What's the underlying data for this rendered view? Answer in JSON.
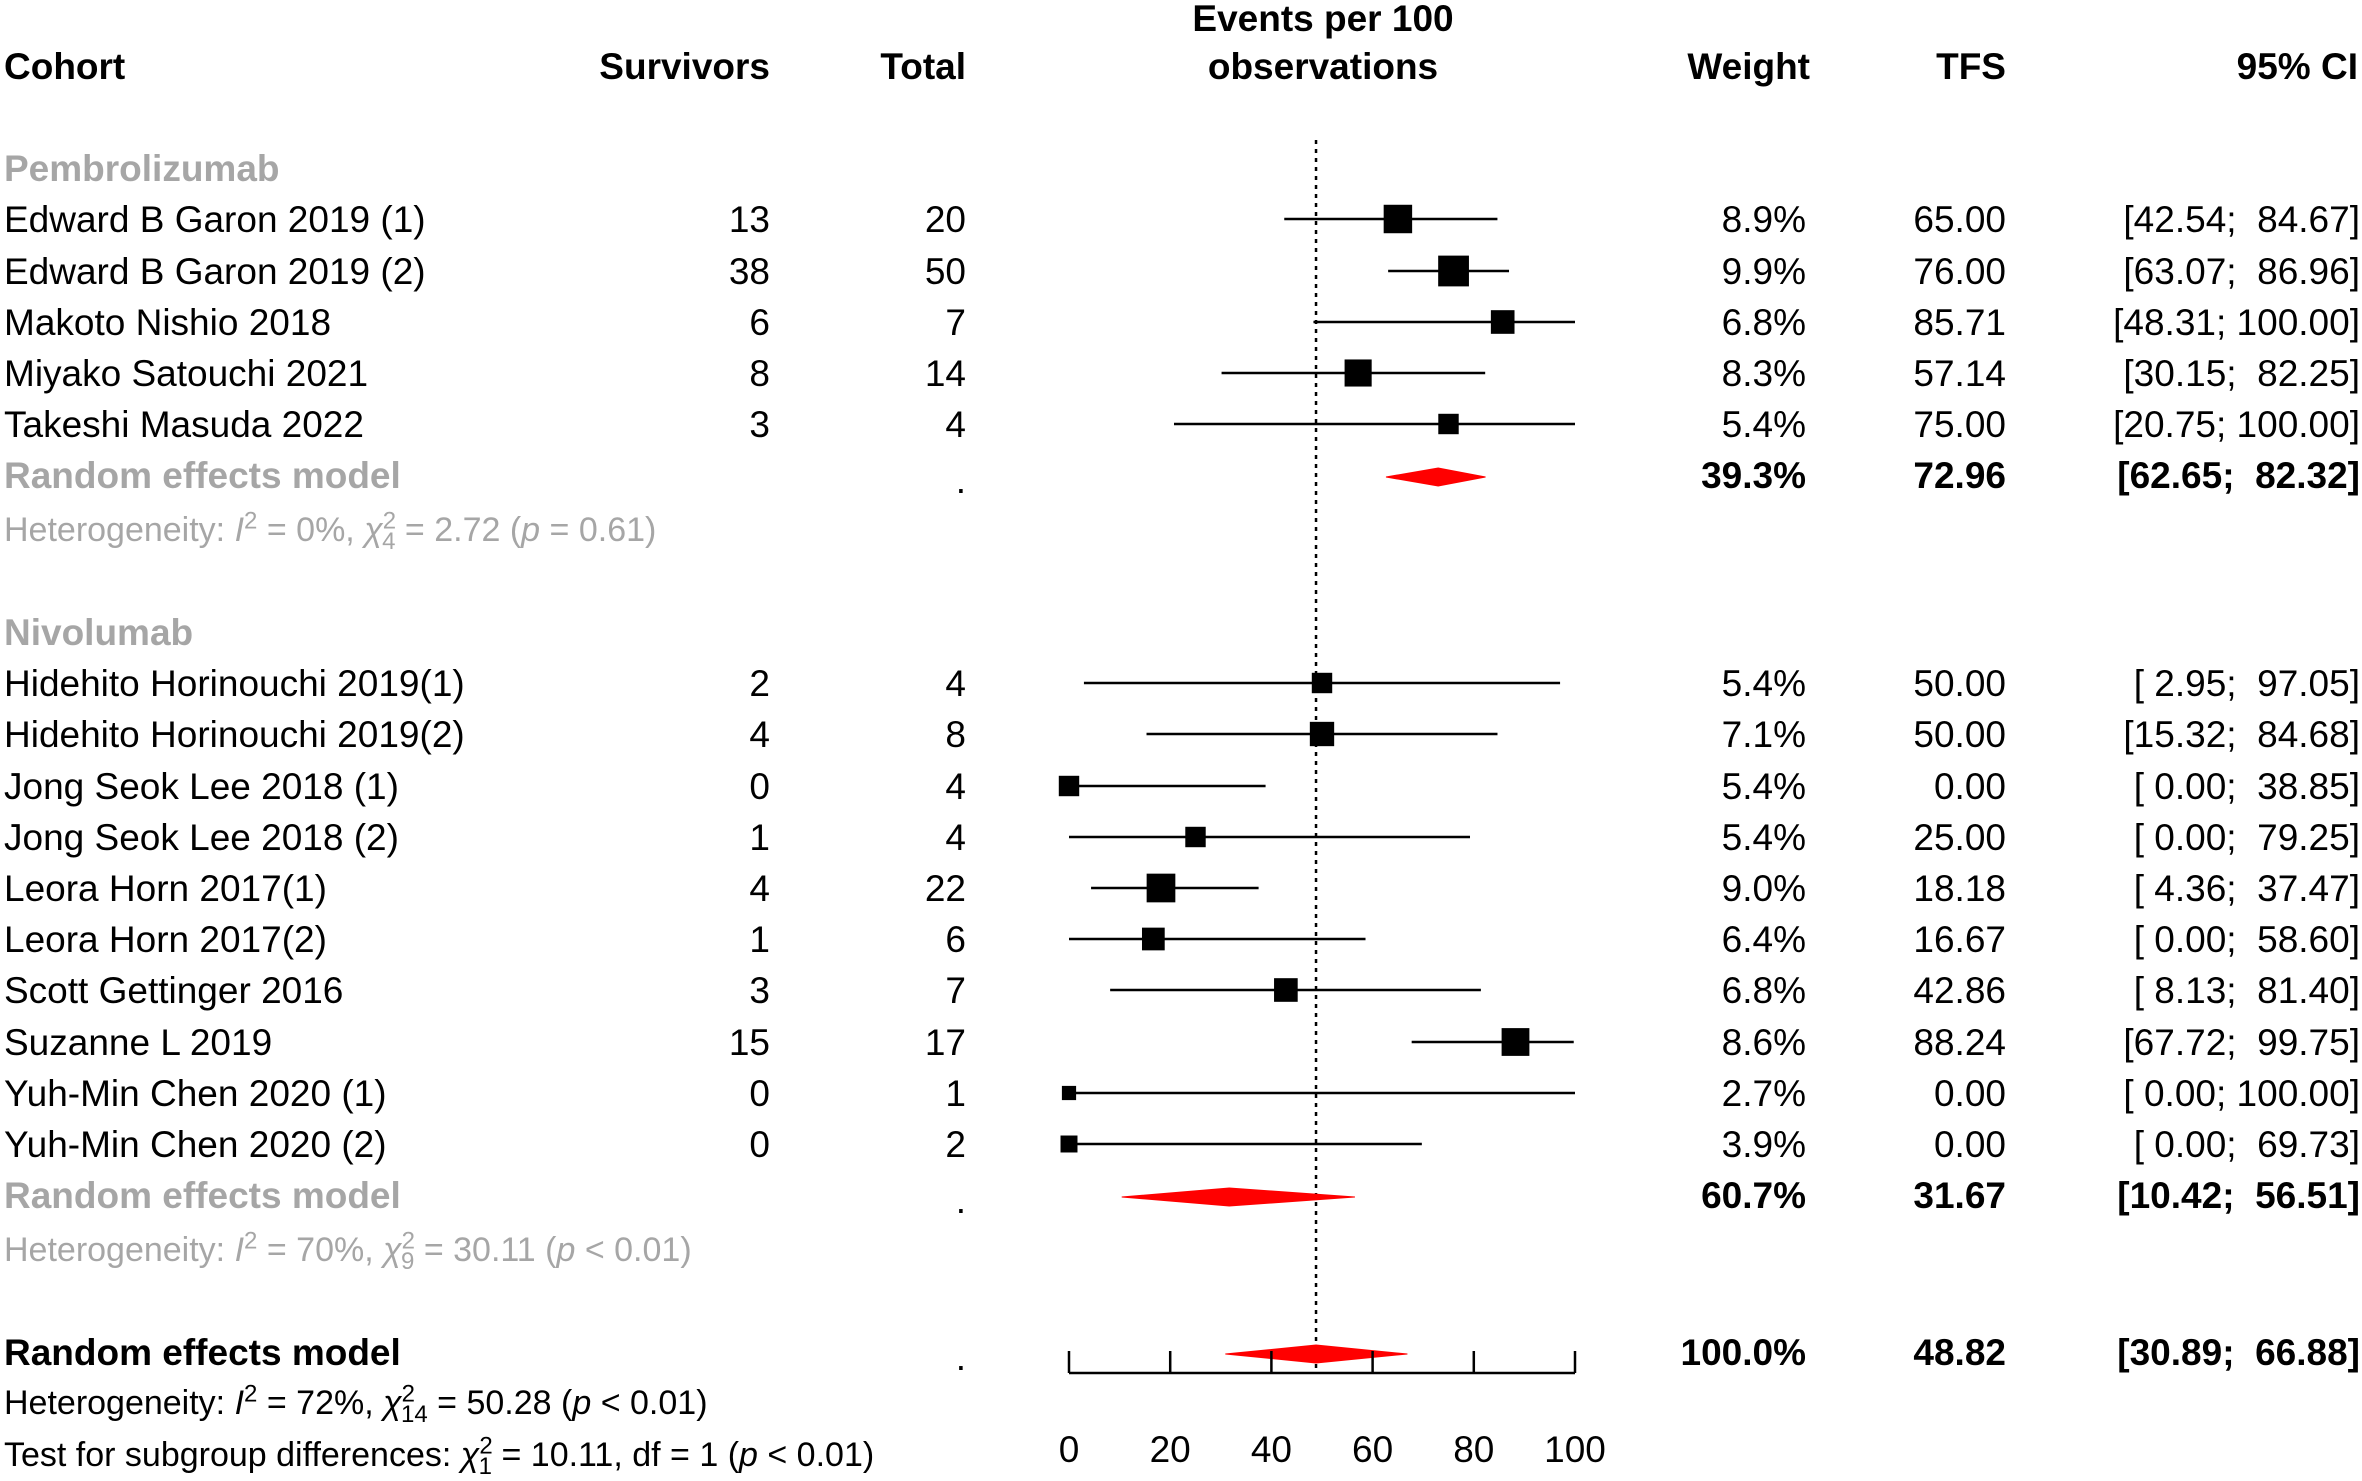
{
  "header": {
    "cohort": "Cohort",
    "survivors": "Survivors",
    "total": "Total",
    "events_line1": "Events per 100",
    "events_line2": "observations",
    "weight": "Weight",
    "tfs": "TFS",
    "ci": "95% CI"
  },
  "groups": [
    {
      "name": "Pembrolizumab",
      "studies": [
        {
          "cohort": "Edward B Garon 2019 (1)",
          "survivors": "13",
          "total": "20",
          "weight": "8.9%",
          "tfs": "65.00",
          "ci": "[42.54;  84.67]"
        },
        {
          "cohort": "Edward B Garon 2019 (2)",
          "survivors": "38",
          "total": "50",
          "weight": "9.9%",
          "tfs": "76.00",
          "ci": "[63.07;  86.96]"
        },
        {
          "cohort": "Makoto Nishio 2018",
          "survivors": "6",
          "total": "7",
          "weight": "6.8%",
          "tfs": "85.71",
          "ci": "[48.31; 100.00]"
        },
        {
          "cohort": "Miyako Satouchi 2021",
          "survivors": "8",
          "total": "14",
          "weight": "8.3%",
          "tfs": "57.14",
          "ci": "[30.15;  82.25]"
        },
        {
          "cohort": "Takeshi Masuda 2022",
          "survivors": "3",
          "total": "4",
          "weight": "5.4%",
          "tfs": "75.00",
          "ci": "[20.75; 100.00]"
        }
      ],
      "model": {
        "label": "Random effects model",
        "total": ".",
        "weight": "39.3%",
        "tfs": "72.96",
        "ci": "[62.65;  82.32]"
      },
      "het": {
        "prefix": "Heterogeneity: ",
        "i2_sym": "I",
        "i2_sup": "2",
        "i2_val": " = 0%, ",
        "chi_sym": "χ",
        "chi_sup": "2",
        "chi_sub": "4",
        "chi_val": " = 2.72 (",
        "p_sym": "p",
        "p_val": " = 0.61)"
      }
    },
    {
      "name": "Nivolumab",
      "studies": [
        {
          "cohort": "Hidehito Horinouchi 2019(1)",
          "survivors": "2",
          "total": "4",
          "weight": "5.4%",
          "tfs": "50.00",
          "ci": "[ 2.95;  97.05]"
        },
        {
          "cohort": "Hidehito Horinouchi 2019(2)",
          "survivors": "4",
          "total": "8",
          "weight": "7.1%",
          "tfs": "50.00",
          "ci": "[15.32;  84.68]"
        },
        {
          "cohort": "Jong Seok Lee 2018 (1)",
          "survivors": "0",
          "total": "4",
          "weight": "5.4%",
          "tfs": "0.00",
          "ci": "[ 0.00;  38.85]"
        },
        {
          "cohort": "Jong Seok Lee 2018 (2)",
          "survivors": "1",
          "total": "4",
          "weight": "5.4%",
          "tfs": "25.00",
          "ci": "[ 0.00;  79.25]"
        },
        {
          "cohort": "Leora Horn 2017(1)",
          "survivors": "4",
          "total": "22",
          "weight": "9.0%",
          "tfs": "18.18",
          "ci": "[ 4.36;  37.47]"
        },
        {
          "cohort": "Leora Horn 2017(2)",
          "survivors": "1",
          "total": "6",
          "weight": "6.4%",
          "tfs": "16.67",
          "ci": "[ 0.00;  58.60]"
        },
        {
          "cohort": "Scott Gettinger 2016",
          "survivors": "3",
          "total": "7",
          "weight": "6.8%",
          "tfs": "42.86",
          "ci": "[ 8.13;  81.40]"
        },
        {
          "cohort": "Suzanne L 2019",
          "survivors": "15",
          "total": "17",
          "weight": "8.6%",
          "tfs": "88.24",
          "ci": "[67.72;  99.75]"
        },
        {
          "cohort": "Yuh-Min Chen 2020 (1)",
          "survivors": "0",
          "total": "1",
          "weight": "2.7%",
          "tfs": "0.00",
          "ci": "[ 0.00; 100.00]"
        },
        {
          "cohort": "Yuh-Min Chen 2020 (2)",
          "survivors": "0",
          "total": "2",
          "weight": "3.9%",
          "tfs": "0.00",
          "ci": "[ 0.00;  69.73]"
        }
      ],
      "model": {
        "label": "Random effects model",
        "total": ".",
        "weight": "60.7%",
        "tfs": "31.67",
        "ci": "[10.42;  56.51]"
      },
      "het": {
        "prefix": "Heterogeneity: ",
        "i2_sym": "I",
        "i2_sup": "2",
        "i2_val": " = 70%, ",
        "chi_sym": "χ",
        "chi_sup": "2",
        "chi_sub": "9",
        "chi_val": " = 30.11 (",
        "p_sym": "p",
        "p_val": " < 0.01)"
      }
    }
  ],
  "overall": {
    "model": {
      "label": "Random effects model",
      "total": ".",
      "weight": "100.0%",
      "tfs": "48.82",
      "ci": "[30.89;  66.88]"
    },
    "het": {
      "prefix": "Heterogeneity: ",
      "i2_sym": "I",
      "i2_sup": "2",
      "i2_val": " = 72%, ",
      "chi_sym": "χ",
      "chi_sup": "2",
      "chi_sub": "14",
      "chi_val": " = 50.28 (",
      "p_sym": "p",
      "p_val": " < 0.01)"
    },
    "subgroup": {
      "prefix": "Test for subgroup differences: ",
      "chi_sym": "χ",
      "chi_sup": "2",
      "chi_sub": "1",
      "chi_val": " = 10.11, df = 1 (",
      "p_sym": "p",
      "p_val": " < 0.01)"
    }
  },
  "chart_data": {
    "type": "forest",
    "title": "Events per 100 observations",
    "xlim": [
      0,
      100
    ],
    "ticks": [
      0,
      20,
      40,
      60,
      80,
      100
    ],
    "reference_line": 48.82,
    "study_color": "#000000",
    "model_color": "#ff0000",
    "studies": [
      {
        "name": "Edward B Garon 2019 (1)",
        "est": 65.0,
        "lo": 42.54,
        "hi": 84.67,
        "weight": 8.9
      },
      {
        "name": "Edward B Garon 2019 (2)",
        "est": 76.0,
        "lo": 63.07,
        "hi": 86.96,
        "weight": 9.9
      },
      {
        "name": "Makoto Nishio 2018",
        "est": 85.71,
        "lo": 48.31,
        "hi": 100.0,
        "weight": 6.8
      },
      {
        "name": "Miyako Satouchi 2021",
        "est": 57.14,
        "lo": 30.15,
        "hi": 82.25,
        "weight": 8.3
      },
      {
        "name": "Takeshi Masuda 2022",
        "est": 75.0,
        "lo": 20.75,
        "hi": 100.0,
        "weight": 5.4
      },
      {
        "name": "Hidehito Horinouchi 2019(1)",
        "est": 50.0,
        "lo": 2.95,
        "hi": 97.05,
        "weight": 5.4
      },
      {
        "name": "Hidehito Horinouchi 2019(2)",
        "est": 50.0,
        "lo": 15.32,
        "hi": 84.68,
        "weight": 7.1
      },
      {
        "name": "Jong Seok Lee 2018 (1)",
        "est": 0.0,
        "lo": 0.0,
        "hi": 38.85,
        "weight": 5.4
      },
      {
        "name": "Jong Seok Lee 2018 (2)",
        "est": 25.0,
        "lo": 0.0,
        "hi": 79.25,
        "weight": 5.4
      },
      {
        "name": "Leora Horn 2017(1)",
        "est": 18.18,
        "lo": 4.36,
        "hi": 37.47,
        "weight": 9.0
      },
      {
        "name": "Leora Horn 2017(2)",
        "est": 16.67,
        "lo": 0.0,
        "hi": 58.6,
        "weight": 6.4
      },
      {
        "name": "Scott Gettinger 2016",
        "est": 42.86,
        "lo": 8.13,
        "hi": 81.4,
        "weight": 6.8
      },
      {
        "name": "Suzanne L 2019",
        "est": 88.24,
        "lo": 67.72,
        "hi": 99.75,
        "weight": 8.6
      },
      {
        "name": "Yuh-Min Chen 2020 (1)",
        "est": 0.0,
        "lo": 0.0,
        "hi": 100.0,
        "weight": 2.7
      },
      {
        "name": "Yuh-Min Chen 2020 (2)",
        "est": 0.0,
        "lo": 0.0,
        "hi": 69.73,
        "weight": 3.9
      }
    ],
    "models": [
      {
        "name": "Pembrolizumab random effects",
        "est": 72.96,
        "lo": 62.65,
        "hi": 82.32
      },
      {
        "name": "Nivolumab random effects",
        "est": 31.67,
        "lo": 10.42,
        "hi": 56.51
      },
      {
        "name": "Overall random effects",
        "est": 48.82,
        "lo": 30.89,
        "hi": 66.88
      }
    ]
  }
}
